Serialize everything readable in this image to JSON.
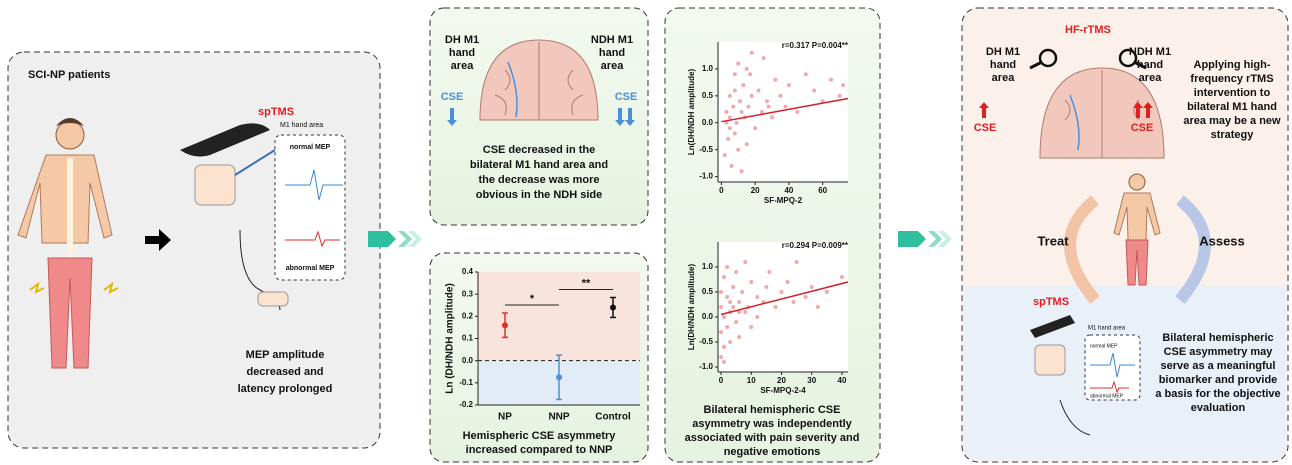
{
  "panel1": {
    "title": "SCI-NP patients",
    "method": "spTMS",
    "site": "M1 hand area",
    "normal": "normal MEP",
    "abnormal": "abnormal MEP",
    "conclusion": [
      "MEP amplitude",
      "decreased and",
      "latency prolonged"
    ]
  },
  "panel2": {
    "left": [
      "DH M1",
      "hand",
      "area"
    ],
    "right": [
      "NDH M1",
      "hand",
      "area"
    ],
    "cse_left": "CSE",
    "cse_right": "CSE",
    "caption": [
      "CSE decreased in the",
      "bilateral M1 hand area and",
      "the decrease was more",
      "obvious in the NDH side"
    ]
  },
  "panel3": {
    "caption": [
      "Hemispheric CSE asymmetry",
      "increased compared to NNP"
    ]
  },
  "panel4": {
    "caption": [
      "Bilateral hemispheric CSE",
      "asymmetry was independently",
      "associated with pain severity and",
      "negative emotions"
    ]
  },
  "panel5": {
    "method": "HF-rTMS",
    "left": [
      "DH M1",
      "hand",
      "area"
    ],
    "right": [
      "NDH M1",
      "hand",
      "area"
    ],
    "cse_left": "CSE",
    "cse_right": "CSE",
    "strategy": [
      "Applying high-",
      "frequency rTMS",
      "intervention to",
      "bilateral M1 hand",
      "area may be a new",
      "strategy"
    ],
    "treat": "Treat",
    "assess": "Assess",
    "method2": "spTMS",
    "site": "M1 hand area",
    "normal": "normal MEP",
    "abnormal": "abnormal MEP",
    "conclusion": [
      "Bilateral hemispheric",
      "CSE asymmetry may",
      "serve as a meaningful",
      "biomarker and provide",
      "a basis for the objective",
      "evaluation"
    ]
  },
  "chart_data": [
    {
      "type": "errorbar",
      "y_label": "Ln (DH/NDH amplitude)",
      "categories": [
        "NP",
        "NNP",
        "Control"
      ],
      "values": [
        0.16,
        -0.075,
        0.24
      ],
      "errors": [
        0.055,
        0.1,
        0.045
      ],
      "colors": [
        "#e03030",
        "#4a90d9",
        "#111111"
      ],
      "ylim": [
        -0.2,
        0.4
      ],
      "yticks": [
        -0.2,
        -0.1,
        {
          "value": 0,
          "label": "0.0"
        },
        0.1,
        0.2,
        0.3,
        0.4
      ],
      "hline": 0,
      "significance": [
        {
          "text": "*",
          "between": [
            "NP",
            "NNP"
          ]
        },
        {
          "text": "**",
          "between": [
            "NNP",
            "Control"
          ]
        }
      ]
    },
    {
      "type": "scatter",
      "annotation": "r=0.317 P=0.004**",
      "y_label": "Ln(DH/NDH amplitude)",
      "x_label": "SF-MPQ-2",
      "x": [
        2,
        3,
        4,
        5,
        5,
        6,
        7,
        8,
        8,
        9,
        10,
        10,
        11,
        12,
        12,
        13,
        14,
        15,
        15,
        16,
        17,
        18,
        20,
        22,
        24,
        25,
        27,
        30,
        32,
        35,
        38,
        40,
        45,
        50,
        55,
        60,
        65,
        70,
        72,
        5,
        8,
        3,
        18,
        28
      ],
      "y": [
        -0.6,
        0.2,
        -0.3,
        0.5,
        0.1,
        -0.8,
        0.3,
        -0.2,
        0.6,
        0.0,
        1.1,
        -0.5,
        0.4,
        0.2,
        -0.9,
        0.7,
        0.1,
        1.0,
        -0.4,
        0.3,
        0.9,
        0.5,
        -0.1,
        0.6,
        0.2,
        1.2,
        0.4,
        0.1,
        0.8,
        0.5,
        0.3,
        0.7,
        0.2,
        0.9,
        0.6,
        0.4,
        0.8,
        0.5,
        0.7,
        -0.1,
        0.9,
        0.0,
        1.3,
        0.3
      ],
      "color": "#f09a9a",
      "fit": {
        "x": [
          0,
          75
        ],
        "y": [
          0.02,
          0.45
        ],
        "color": "#d0202a"
      },
      "xlim": [
        -2,
        75
      ],
      "xticks": [
        0,
        20,
        40,
        60
      ],
      "ylim": [
        -1.1,
        1.5
      ],
      "yticks": [
        {
          "value": -1,
          "label": "-1.0"
        },
        -0.5,
        {
          "value": 0,
          "label": "0.0"
        },
        0.5,
        {
          "value": 1,
          "label": "1.0"
        }
      ]
    },
    {
      "type": "scatter",
      "annotation": "r=0.294 P=0.009**",
      "y_label": "Ln(DH/NDH amplitude)",
      "x_label": "SF-MPQ-2-4",
      "x": [
        0,
        0,
        0,
        0,
        1,
        1,
        1,
        2,
        2,
        2,
        3,
        3,
        4,
        4,
        5,
        5,
        6,
        6,
        7,
        8,
        8,
        9,
        10,
        10,
        12,
        12,
        14,
        15,
        16,
        18,
        20,
        22,
        24,
        25,
        28,
        30,
        32,
        35,
        40,
        1,
        3,
        6
      ],
      "y": [
        -0.8,
        -0.3,
        0.2,
        0.5,
        -0.6,
        0.0,
        0.8,
        -0.2,
        0.4,
        1.0,
        0.1,
        -0.5,
        0.6,
        0.2,
        -0.1,
        0.9,
        0.3,
        -0.4,
        0.5,
        0.1,
        1.1,
        0.2,
        0.7,
        -0.2,
        0.4,
        0.0,
        0.3,
        0.6,
        0.9,
        0.2,
        0.5,
        0.7,
        0.3,
        1.1,
        0.4,
        0.6,
        0.2,
        0.5,
        0.8,
        -0.9,
        0.3,
        0.1
      ],
      "color": "#f09a9a",
      "fit": {
        "x": [
          0,
          42
        ],
        "y": [
          0.05,
          0.7
        ],
        "color": "#d0202a"
      },
      "xlim": [
        -1,
        42
      ],
      "xticks": [
        0,
        10,
        20,
        30,
        40
      ],
      "ylim": [
        -1.1,
        1.5
      ],
      "yticks": [
        {
          "value": -1,
          "label": "-1.0"
        },
        -0.5,
        {
          "value": 0,
          "label": "0.0"
        },
        0.5,
        {
          "value": 1,
          "label": "1.0"
        }
      ]
    }
  ]
}
